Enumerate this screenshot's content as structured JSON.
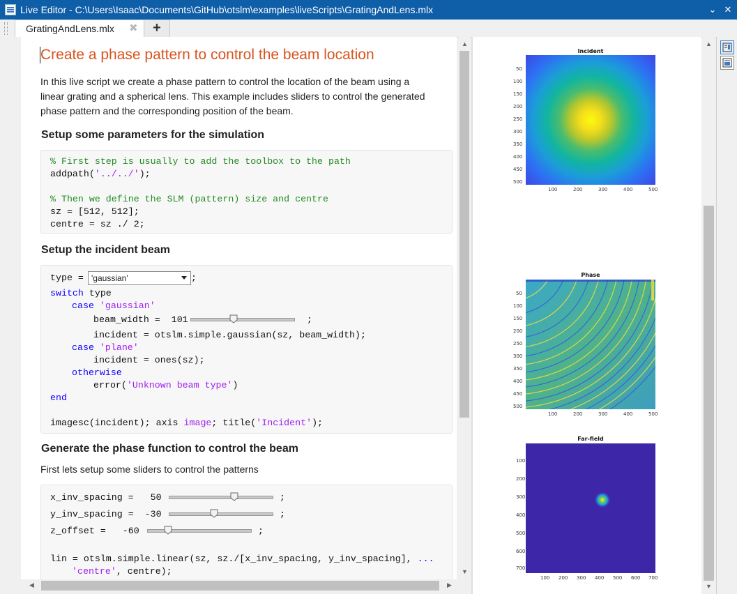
{
  "window": {
    "title": "Live Editor - C:\\Users\\Isaac\\Documents\\GitHub\\otslm\\examples\\liveScripts\\GratingAndLens.mlx"
  },
  "tabs": [
    {
      "label": "GratingAndLens.mlx"
    }
  ],
  "doc": {
    "heading": "Create a phase pattern to control the beam location",
    "intro_lines": [
      "In this live script we create a phase pattern to control the location of the beam using a",
      "linear grating and a spherical lens.  This example includes sliders to control the generated",
      "phase pattern and the corresponding position of the beam."
    ],
    "section1": "Setup some parameters for the simulation",
    "code1": {
      "c1": "% First step is usually to add the toolbox to the path",
      "l2a": "addpath(",
      "l2s": "'../../'",
      "l2b": ");",
      "c4": "% Then we define the SLM (pattern) size and centre",
      "l5": "sz = [512, 512];",
      "l6": "centre = sz ./ 2;"
    },
    "section2": "Setup the incident beam",
    "code2": {
      "type_prefix": "type = ",
      "type_value": "'gaussian'",
      "type_suffix": ";",
      "switch_kw": "switch",
      "switch_rest": " type",
      "case_kw": "case",
      "case1": "'gaussian'",
      "bw_prefix": "beam_width =  101",
      "bw_value": 101,
      "semicolon": ";",
      "inc1": "incident = otslm.simple.gaussian(sz, beam_width);",
      "case2": "'plane'",
      "inc2": "incident = ones(sz);",
      "otherwise_kw": "otherwise",
      "err_a": "error(",
      "err_s": "'Unknown beam type'",
      "err_b": ")",
      "end_kw": "end",
      "img_a": "imagesc(incident); axis ",
      "img_kw": "image",
      "img_b": "; title(",
      "img_s": "'Incident'",
      "img_c": ");"
    },
    "section3": "Generate the phase function to control the beam",
    "para3": "First lets setup some sliders to control the patterns",
    "code3": {
      "x_label": "x_inv_spacing =   50",
      "x_value": 50,
      "y_label": "y_inv_spacing =  -30",
      "y_value": -30,
      "z_label": "z_offset =   -60",
      "z_value": -60,
      "semicolon": ";",
      "lin1": "lin = otslm.simple.linear(sz, sz./[x_inv_spacing, y_inv_spacing], ",
      "lin1_ellipsis": "...",
      "lin2_s": "'centre'",
      "lin2_b": ", centre);"
    }
  },
  "figures": {
    "incident": {
      "title": "Incident",
      "yticks": [
        "50",
        "100",
        "150",
        "200",
        "250",
        "300",
        "350",
        "400",
        "450",
        "500"
      ],
      "xticks": [
        "100",
        "200",
        "300",
        "400",
        "500"
      ]
    },
    "phase": {
      "title": "Phase",
      "yticks": [
        "50",
        "100",
        "150",
        "200",
        "250",
        "300",
        "350",
        "400",
        "450",
        "500"
      ],
      "xticks": [
        "100",
        "200",
        "300",
        "400",
        "500"
      ]
    },
    "farfield": {
      "title": "Far-field",
      "yticks": [
        "100",
        "200",
        "300",
        "400",
        "500",
        "600",
        "700"
      ],
      "xticks": [
        "100",
        "200",
        "300",
        "400",
        "500",
        "600",
        "700"
      ]
    }
  },
  "colors": {
    "heading": "#d9541e",
    "comment": "#228b22",
    "string": "#a020f0",
    "keyword": "#0e00ff",
    "titlebar": "#0f5ea8"
  }
}
